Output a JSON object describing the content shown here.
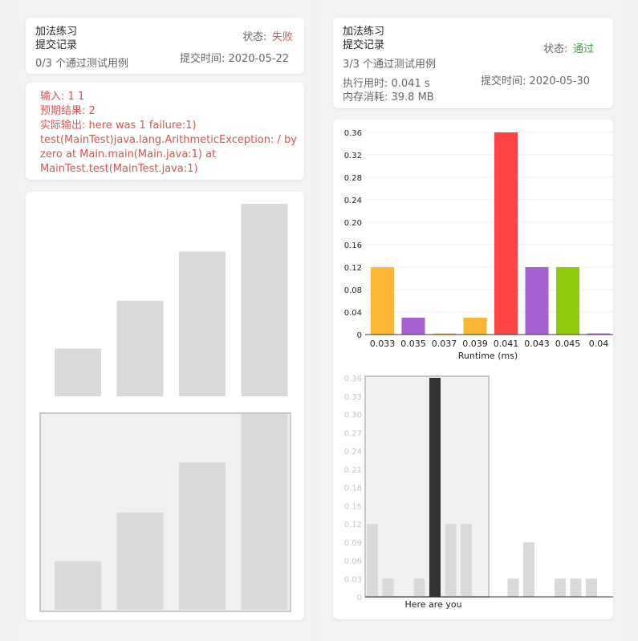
{
  "left": {
    "card": {
      "title": "加法练习",
      "subtitle": "提交记录",
      "status_label": "状态:",
      "status_value": "失败",
      "tests": "0/3 个通过测试用例",
      "submit_time": "提交时间: 2020-05-22"
    },
    "error": {
      "input": "输入: 1 1",
      "expected": "预期结果: 2",
      "actual": "实际输出: here was 1 failure:1) test(MainTest)java.lang.ArithmeticException: / by zero  at Main.main(Main.java:1)  at MainTest.test(MainTest.java:1)"
    },
    "placeholder_top": [
      0.33,
      0.66,
      1.0,
      1.33
    ],
    "placeholder_bottom": [
      0.33,
      0.66,
      1.0,
      1.33
    ]
  },
  "right": {
    "card": {
      "title": "加法练习",
      "subtitle": "提交记录",
      "status_label": "状态:",
      "status_value": "通过",
      "tests": "3/3 个通过测试用例",
      "runtime": "执行用时: 0.041 s",
      "memory": "内存消耗: 39.8 MB",
      "submit_time": "提交时间: 2020-05-30"
    }
  },
  "colors": {
    "orange": "#fcb633",
    "purple": "#a761d2",
    "red": "#ff4445",
    "green": "#8fcb0b",
    "highlight": "#333333",
    "muted": "#d9d9d9",
    "fail": "#d9534f",
    "pass": "#3aa63a"
  },
  "chart_data": [
    {
      "type": "bar",
      "categories": [
        "0.033",
        "0.035",
        "0.037",
        "0.039",
        "0.041",
        "0.043",
        "0.045",
        "0.04"
      ],
      "values": [
        0.12,
        0.03,
        0.002,
        0.03,
        0.36,
        0.12,
        0.12,
        0.002
      ],
      "colors": [
        "#fcb633",
        "#a761d2",
        "#fcb633",
        "#fcb633",
        "#ff4445",
        "#a761d2",
        "#8fcb0b",
        "#a761d2"
      ],
      "xlabel": "Runtime (ms)",
      "ylabel": "",
      "ylim": [
        0,
        0.36
      ],
      "yticks": [
        "0",
        "0.04",
        "0.08",
        "0.12",
        "0.16",
        "0.20",
        "0.24",
        "0.28",
        "0.32",
        "0.36"
      ],
      "grid": true
    },
    {
      "type": "bar",
      "values": [
        0.12,
        0.03,
        0,
        0.03,
        0.36,
        0.12,
        0.12,
        0,
        0,
        0.03,
        0.09,
        0,
        0.03,
        0.03,
        0.03
      ],
      "highlight_index": 4,
      "annotation": "Here are you",
      "ylim": [
        0,
        0.36
      ],
      "yticks": [
        "0",
        "0.03",
        "0.06",
        "0.09",
        "0.12",
        "0.15",
        "0.18",
        "0.21",
        "0.24",
        "0.27",
        "0.30",
        "0.33",
        "0.36"
      ]
    }
  ]
}
